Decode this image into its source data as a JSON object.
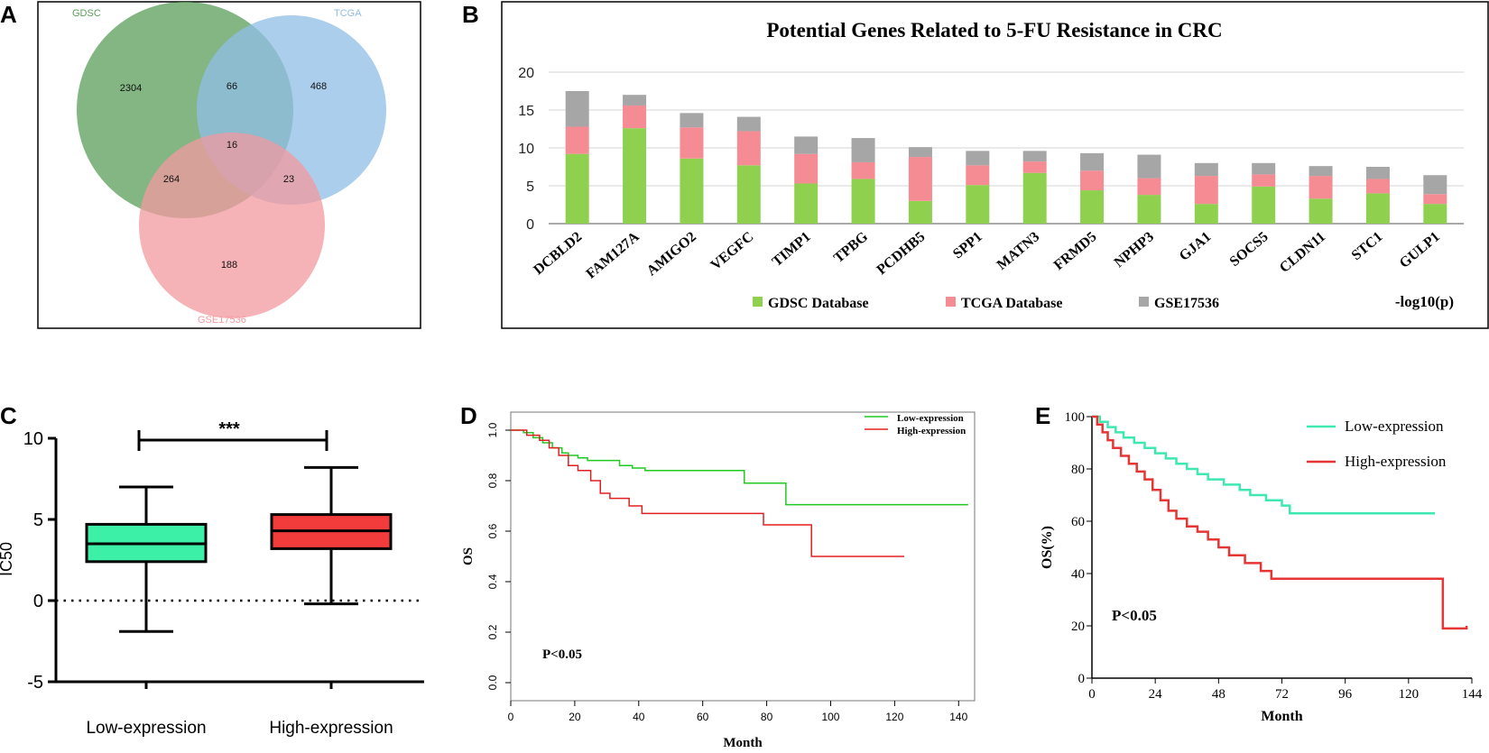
{
  "chart_data": [
    {
      "panel": "A",
      "type": "venn",
      "sets": [
        {
          "name": "GDSC",
          "color": "#5a9e5a"
        },
        {
          "name": "TCGA",
          "color": "#8fbde6"
        },
        {
          "name": "GSE17536",
          "color": "#f29aa0"
        }
      ],
      "counts": {
        "GDSC_only": "2304",
        "GDSC_TCGA": "66",
        "TCGA_only": "468",
        "all_three": "16",
        "GDSC_GSE17536": "264",
        "TCGA_GSE17536": "23",
        "GSE17536_only": "188"
      }
    },
    {
      "panel": "B",
      "type": "bar",
      "stacked": true,
      "title": "Potential Genes Related to 5-FU Resistance in CRC",
      "ylim": [
        0,
        20
      ],
      "yticks": [
        "0",
        "5",
        "10",
        "15",
        "20"
      ],
      "categories": [
        "DCBLD2",
        "FAM127A",
        "AMIGO2",
        "VEGFC",
        "TIMP1",
        "TPBG",
        "PCDHB5",
        "SPP1",
        "MATN3",
        "FRMD5",
        "NPHP3",
        "GJA1",
        "SOCS5",
        "CLDN11",
        "STC1",
        "GULP1"
      ],
      "series": [
        {
          "name": "GDSC Database",
          "color": "#8fd14f",
          "values": [
            9.2,
            12.6,
            8.6,
            7.7,
            5.3,
            5.9,
            3.0,
            5.1,
            6.7,
            4.4,
            3.8,
            2.6,
            4.9,
            3.3,
            4.0,
            2.6
          ]
        },
        {
          "name": "TCGA Database",
          "color": "#f58c94",
          "values": [
            3.6,
            3.0,
            4.1,
            4.5,
            3.9,
            2.2,
            5.8,
            2.6,
            1.5,
            2.6,
            2.2,
            3.7,
            1.6,
            3.0,
            1.9,
            1.3
          ]
        },
        {
          "name": "GSE17536",
          "color": "#a6a6a6",
          "values": [
            4.7,
            1.4,
            1.9,
            1.9,
            2.3,
            3.2,
            1.3,
            1.9,
            1.4,
            2.3,
            3.1,
            1.7,
            1.5,
            1.3,
            1.6,
            2.5
          ]
        }
      ],
      "ylabel_note": "-log10(p)"
    },
    {
      "panel": "C",
      "type": "box",
      "ylabel": "IC50",
      "ylim": [
        -5,
        10
      ],
      "yticks": [
        "-5",
        "0",
        "5",
        "10"
      ],
      "significance": "***",
      "groups": [
        {
          "name": "Low-expression",
          "color": "#3cf0a8",
          "min": -1.9,
          "q1": 2.4,
          "median": 3.5,
          "q3": 4.7,
          "max": 7.0
        },
        {
          "name": "High-expression",
          "color": "#f23c3c",
          "min": -0.2,
          "q1": 3.2,
          "median": 4.3,
          "q3": 5.3,
          "max": 8.2
        }
      ]
    },
    {
      "panel": "D",
      "type": "line",
      "subtype": "kaplan-meier",
      "xlabel": "Month",
      "ylabel": "OS",
      "xlim": [
        0,
        145
      ],
      "ylim": [
        0,
        1.0
      ],
      "xticks": [
        "0",
        "20",
        "40",
        "60",
        "80",
        "100",
        "120",
        "140"
      ],
      "yticks": [
        "0.0",
        "0.2",
        "0.4",
        "0.6",
        "0.8",
        "1.0"
      ],
      "annotation": "P<0.05",
      "series": [
        {
          "name": "Low-expression",
          "color": "#22c922",
          "x": [
            0,
            4,
            7,
            10,
            13,
            16,
            18,
            21,
            24,
            26,
            34,
            38,
            42,
            73,
            86,
            143
          ],
          "y": [
            1.0,
            0.99,
            0.97,
            0.95,
            0.93,
            0.91,
            0.9,
            0.89,
            0.88,
            0.88,
            0.86,
            0.85,
            0.84,
            0.79,
            0.705,
            0.705
          ]
        },
        {
          "name": "High-expression",
          "color": "#e02020",
          "x": [
            0,
            5,
            9,
            12,
            15,
            18,
            21,
            25,
            28,
            31,
            37,
            41,
            79,
            94,
            123
          ],
          "y": [
            1.0,
            0.98,
            0.96,
            0.93,
            0.9,
            0.86,
            0.84,
            0.8,
            0.75,
            0.73,
            0.7,
            0.67,
            0.625,
            0.5,
            0.5
          ]
        }
      ]
    },
    {
      "panel": "E",
      "type": "line",
      "subtype": "kaplan-meier",
      "xlabel": "Month",
      "ylabel": "OS(%)",
      "xlim": [
        0,
        144
      ],
      "ylim": [
        0,
        100
      ],
      "xticks": [
        "0",
        "24",
        "48",
        "72",
        "96",
        "120",
        "144"
      ],
      "yticks": [
        "0",
        "20",
        "40",
        "60",
        "80",
        "100"
      ],
      "annotation": "P<0.05",
      "series": [
        {
          "name": "Low-expression",
          "color": "#3ee8b0",
          "x": [
            0,
            3,
            6,
            9,
            12,
            16,
            20,
            24,
            28,
            32,
            36,
            40,
            44,
            50,
            56,
            60,
            66,
            72,
            75,
            130
          ],
          "y": [
            100,
            98,
            96,
            94,
            92,
            90,
            88,
            86,
            84,
            82,
            80,
            78,
            76,
            74,
            72,
            70,
            68,
            66,
            63,
            63
          ]
        },
        {
          "name": "High-expression",
          "color": "#e53535",
          "x": [
            0,
            2,
            4,
            6,
            8,
            11,
            14,
            17,
            20,
            23,
            26,
            29,
            32,
            36,
            40,
            44,
            48,
            52,
            58,
            64,
            68,
            72,
            133,
            142
          ],
          "y": [
            100,
            97,
            94,
            91,
            88,
            85,
            82,
            79,
            76,
            72,
            68,
            64,
            61,
            58,
            56,
            53,
            50,
            47,
            44,
            41,
            38,
            38,
            19,
            20
          ]
        }
      ]
    }
  ]
}
